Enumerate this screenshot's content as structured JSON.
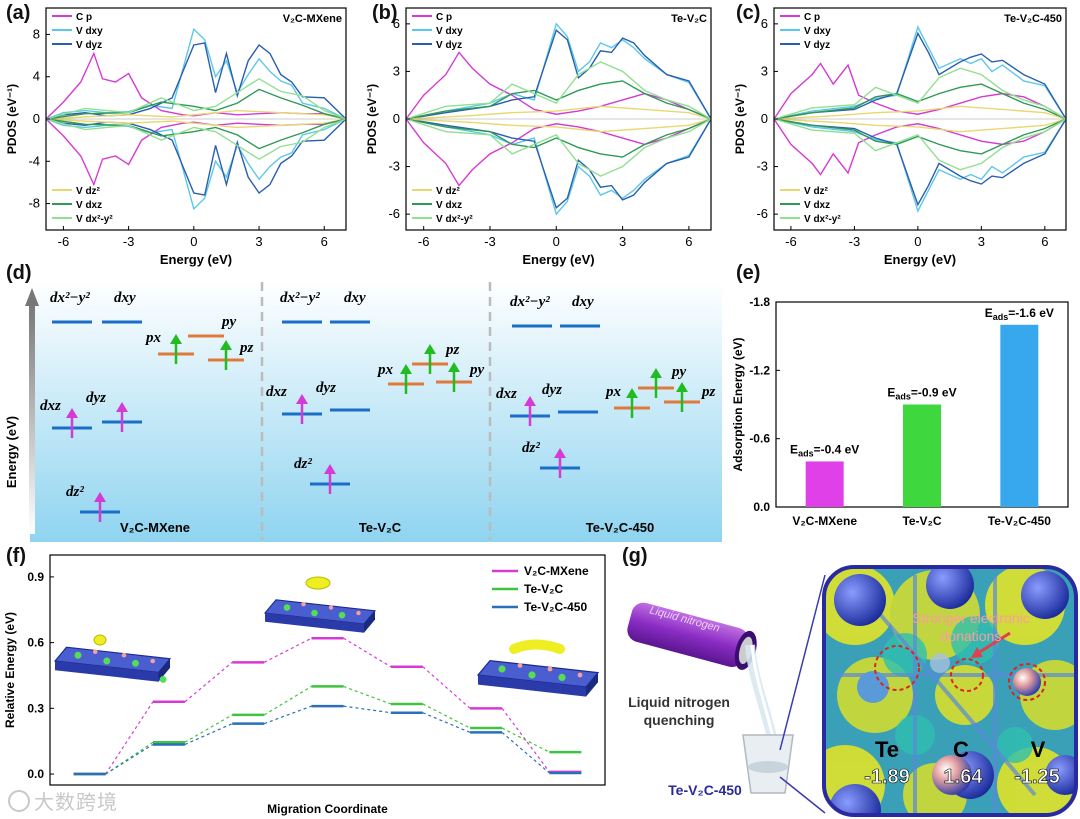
{
  "figure": {
    "panel_labels": [
      "(a)",
      "(b)",
      "(c)",
      "(d)",
      "(e)",
      "(f)",
      "(g)"
    ],
    "watermark": "大数跨境"
  },
  "chart_data": [
    {
      "id": "a",
      "type": "line",
      "panel_title": "V₂C-MXene",
      "xlabel": "Energy (eV)",
      "ylabel": "PDOS (eV⁻¹)",
      "xlim": [
        -6.8,
        7
      ],
      "ylim": [
        -10.5,
        10.5
      ],
      "xticks": [
        -6,
        -3,
        0,
        3,
        6
      ],
      "yticks": [
        -8,
        -4,
        0,
        4,
        8
      ],
      "legend_top": [
        "C p",
        "V dxy",
        "V dyz"
      ],
      "legend_bottom": [
        "V dz²",
        "V dxz",
        "V dx²-y²"
      ],
      "series": [
        {
          "name": "C p",
          "color": "#d63ad6",
          "x": [
            -6.8,
            -6,
            -5.2,
            -4.6,
            -4.2,
            -3.6,
            -3,
            -2.4,
            -1.5,
            -0.5,
            0,
            1,
            2,
            3,
            4,
            5,
            6,
            7
          ],
          "y": [
            0,
            1.6,
            3.5,
            6.2,
            3.8,
            3.5,
            4.3,
            2,
            0.8,
            0.4,
            0.3,
            0.6,
            0.4,
            0.5,
            0.6,
            0.5,
            0.5,
            0
          ]
        },
        {
          "name": "V dxy",
          "color": "#5cc8e8",
          "x": [
            -6.8,
            -6,
            -5,
            -4,
            -3,
            -2,
            -1,
            0,
            0.5,
            1,
            1.5,
            2,
            2.5,
            3,
            3.5,
            4,
            4.5,
            5,
            6,
            7
          ],
          "y": [
            0,
            0.6,
            0.8,
            0.6,
            0.7,
            1.3,
            1,
            8.5,
            7.5,
            4,
            5.5,
            2.5,
            4.2,
            5.7,
            4.5,
            3.6,
            3.2,
            1.5,
            1,
            0
          ]
        },
        {
          "name": "V dyz",
          "color": "#2a5fb0",
          "x": [
            -6.8,
            -6,
            -5,
            -4,
            -3,
            -2,
            -1,
            0,
            0.5,
            1,
            1.5,
            2,
            2.5,
            3,
            3.5,
            4,
            4.5,
            5,
            6,
            7
          ],
          "y": [
            0,
            0.4,
            0.6,
            0.3,
            0.4,
            1,
            2,
            7,
            7.2,
            2.5,
            6.2,
            2.2,
            5.5,
            7,
            6.2,
            4.2,
            3.5,
            2.1,
            2,
            0
          ]
        },
        {
          "name": "V dz²",
          "color": "#e8d870",
          "x": [
            -6.8,
            -5,
            -3,
            -1,
            0,
            2,
            4,
            6,
            7
          ],
          "y": [
            0,
            0.2,
            0.4,
            0.2,
            0.4,
            0.8,
            0.6,
            0.4,
            0
          ]
        },
        {
          "name": "V dxz",
          "color": "#2e9a55",
          "x": [
            -6.8,
            -5,
            -3,
            -1.5,
            0,
            1,
            2,
            3,
            4,
            5,
            6,
            7
          ],
          "y": [
            0,
            0.5,
            0.6,
            1.6,
            1.2,
            0.8,
            1.5,
            2.8,
            2,
            1.3,
            0.5,
            0
          ]
        },
        {
          "name": "V dx²-y²",
          "color": "#90e090",
          "x": [
            -6.8,
            -5,
            -3,
            -1.5,
            0,
            1,
            2,
            3,
            4,
            5,
            6,
            7
          ],
          "y": [
            0,
            1,
            0.6,
            2,
            0.8,
            1.2,
            2.5,
            3.8,
            2.6,
            2.2,
            0.8,
            0
          ]
        }
      ],
      "mirrored": true
    },
    {
      "id": "b",
      "type": "line",
      "panel_title": "Te-V₂C",
      "xlabel": "Energy (eV)",
      "ylabel": "PDOS (eV⁻¹)",
      "xlim": [
        -6.8,
        7
      ],
      "ylim": [
        -7,
        7
      ],
      "xticks": [
        -6,
        -3,
        0,
        3,
        6
      ],
      "yticks": [
        -6,
        -3,
        0,
        3,
        6
      ],
      "legend_top": [
        "C p",
        "V dxy",
        "V dyz"
      ],
      "legend_bottom": [
        "V dz²",
        "V dxz",
        "V dx²-y²"
      ],
      "series": [
        {
          "name": "C p",
          "color": "#d63ad6",
          "x": [
            -6.8,
            -6,
            -5,
            -4.4,
            -3.8,
            -3,
            -2,
            -1,
            0,
            1,
            2,
            3,
            4,
            5,
            6,
            7
          ],
          "y": [
            0,
            1.5,
            2.8,
            4.2,
            3.2,
            2.2,
            1.5,
            0.6,
            0.3,
            0.5,
            0.8,
            1.2,
            1.6,
            1.2,
            0.6,
            0
          ]
        },
        {
          "name": "V dxy",
          "color": "#5cc8e8",
          "x": [
            -6.8,
            -5,
            -3,
            -2,
            -1,
            0,
            0.5,
            1,
            1.5,
            2,
            2.5,
            3,
            3.5,
            4,
            5,
            6,
            7
          ],
          "y": [
            0,
            0.5,
            1,
            1.6,
            1.2,
            6,
            5.2,
            3,
            3.6,
            4.8,
            4.5,
            5,
            4.5,
            3.8,
            2.8,
            2.3,
            0
          ]
        },
        {
          "name": "V dyz",
          "color": "#2a5fb0",
          "x": [
            -6.8,
            -5,
            -3,
            -2,
            -1,
            0,
            0.5,
            1,
            1.5,
            2,
            2.5,
            3,
            3.5,
            4,
            5,
            6,
            7
          ],
          "y": [
            0,
            0.4,
            0.8,
            1.2,
            1.4,
            5.6,
            5,
            2.6,
            3.2,
            4.3,
            4.2,
            5.1,
            4.8,
            4,
            2.8,
            2.4,
            0
          ]
        },
        {
          "name": "V dz²",
          "color": "#e8d870",
          "x": [
            -6.8,
            -4,
            -2,
            0,
            2,
            4,
            6,
            7
          ],
          "y": [
            0,
            0.2,
            0.4,
            0.5,
            0.8,
            0.6,
            0.4,
            0
          ]
        },
        {
          "name": "V dxz",
          "color": "#2e9a55",
          "x": [
            -6.8,
            -5,
            -3,
            -2,
            -1,
            0,
            1,
            2,
            3,
            4,
            5,
            6,
            7
          ],
          "y": [
            0,
            0.5,
            0.8,
            1.6,
            1.8,
            1.2,
            1.8,
            2.2,
            2.4,
            1.6,
            1,
            0.6,
            0
          ]
        },
        {
          "name": "V dx²-y²",
          "color": "#90e090",
          "x": [
            -6.8,
            -5,
            -3,
            -2,
            -1,
            0,
            1,
            2,
            3,
            4,
            5,
            6,
            7
          ],
          "y": [
            0,
            0.8,
            1,
            2.2,
            1.6,
            1,
            2.8,
            3.6,
            3,
            1.8,
            1.2,
            0.8,
            0
          ]
        }
      ],
      "mirrored": true
    },
    {
      "id": "c",
      "type": "line",
      "panel_title": "Te-V₂C-450",
      "xlabel": "Energy (eV)",
      "ylabel": "PDOS (eV⁻¹)",
      "xlim": [
        -6.8,
        7
      ],
      "ylim": [
        -7,
        7
      ],
      "xticks": [
        -6,
        -3,
        0,
        3,
        6
      ],
      "yticks": [
        -6,
        -3,
        0,
        3,
        6
      ],
      "legend_top": [
        "C p",
        "V dxy",
        "V dyz"
      ],
      "legend_bottom": [
        "V dz²",
        "V dxz",
        "V dx²-y²"
      ],
      "series": [
        {
          "name": "C p",
          "color": "#d63ad6",
          "x": [
            -6.8,
            -6,
            -5,
            -4.6,
            -4,
            -3.3,
            -2.8,
            -2,
            -1,
            0,
            1,
            2,
            3,
            4,
            5,
            6,
            7
          ],
          "y": [
            0,
            1.6,
            2.8,
            3.5,
            2.2,
            3.4,
            1.5,
            1,
            0.5,
            0.3,
            0.6,
            1,
            1.4,
            1.6,
            1.4,
            0.8,
            0
          ]
        },
        {
          "name": "V dxy",
          "color": "#5cc8e8",
          "x": [
            -6.8,
            -5,
            -3,
            -2,
            -1,
            0,
            0.5,
            1,
            2,
            2.5,
            3,
            3.5,
            4,
            5,
            6,
            7
          ],
          "y": [
            0,
            0.5,
            0.8,
            1.3,
            1.5,
            5.8,
            4.5,
            3.2,
            3.8,
            3.5,
            3.8,
            3,
            3.4,
            2.4,
            2.1,
            0
          ]
        },
        {
          "name": "V dyz",
          "color": "#2a5fb0",
          "x": [
            -6.8,
            -5,
            -3,
            -2,
            -1,
            0,
            0.5,
            1,
            2,
            2.5,
            3,
            3.5,
            4,
            5,
            6,
            7
          ],
          "y": [
            0,
            0.4,
            0.6,
            1.2,
            1.6,
            5.4,
            4.2,
            2.8,
            3.6,
            3.9,
            4.1,
            3.6,
            3.7,
            2.8,
            2.2,
            0
          ]
        },
        {
          "name": "V dz²",
          "color": "#e8d870",
          "x": [
            -6.8,
            -4,
            -2,
            0,
            2,
            4,
            6,
            7
          ],
          "y": [
            0,
            0.2,
            0.4,
            0.5,
            0.8,
            0.6,
            0.4,
            0
          ]
        },
        {
          "name": "V dxz",
          "color": "#2e9a55",
          "x": [
            -6.8,
            -5,
            -3,
            -2,
            -1,
            0,
            1,
            2,
            3,
            4,
            5,
            6,
            7
          ],
          "y": [
            0,
            0.4,
            0.7,
            1.4,
            1.6,
            1.1,
            1.6,
            2,
            2.2,
            1.6,
            1,
            0.6,
            0
          ]
        },
        {
          "name": "V dx²-y²",
          "color": "#90e090",
          "x": [
            -6.8,
            -5,
            -3,
            -2,
            -1,
            0,
            1,
            2,
            3,
            4,
            5,
            6,
            7
          ],
          "y": [
            0,
            0.7,
            0.9,
            2,
            1.5,
            1,
            2.6,
            3.2,
            2.8,
            1.8,
            1.2,
            0.8,
            0
          ]
        }
      ],
      "mirrored": true
    },
    {
      "id": "e",
      "type": "bar",
      "ylabel": "Adsorption Energy (eV)",
      "categories": [
        "V₂C-MXene",
        "Te-V₂C",
        "Te-V₂C-450"
      ],
      "values": [
        -0.4,
        -0.9,
        -1.6
      ],
      "colors": [
        "#e040e8",
        "#3ed83e",
        "#38a8ee"
      ],
      "annotation_prefix": "E",
      "annotation_subscript": "ads",
      "annotations": [
        "=-0.4 eV",
        "=-0.9 eV",
        "=-1.6 eV"
      ],
      "ylim": [
        0,
        -1.8
      ],
      "yticks": [
        "0.0",
        "-0.6",
        "-1.2",
        "-1.8"
      ],
      "ytick_values": [
        0,
        -0.6,
        -1.2,
        -1.8
      ]
    },
    {
      "id": "f",
      "type": "line",
      "xlabel": "Migration Coordinate",
      "ylabel": "Relative Energy (eV)",
      "ylim": [
        -0.05,
        1.0
      ],
      "yticks": [
        "0.0",
        "0.3",
        "0.6",
        "0.9"
      ],
      "ytick_values": [
        0,
        0.3,
        0.6,
        0.9
      ],
      "series": [
        {
          "name": "V₂C-MXene",
          "color": "#d63ad6",
          "values": [
            0.0,
            0.33,
            0.51,
            0.62,
            0.49,
            0.3,
            0.01
          ]
        },
        {
          "name": "Te-V₂C",
          "color": "#3ec43e",
          "values": [
            0.0,
            0.145,
            0.27,
            0.4,
            0.32,
            0.21,
            0.1
          ]
        },
        {
          "name": "Te-V₂C-450",
          "color": "#2a6fb8",
          "values": [
            0.0,
            0.135,
            0.23,
            0.31,
            0.28,
            0.19,
            0.005
          ]
        }
      ]
    }
  ],
  "panel_d": {
    "y_axis_label": "Energy (eV)",
    "columns": [
      {
        "name": "V₂C-MXene",
        "orbitals": [
          "dx²−y²",
          "dxy",
          "dxz",
          "dyz",
          "dz²",
          "px",
          "py",
          "pz"
        ]
      },
      {
        "name": "Te-V₂C",
        "orbitals": [
          "dx²−y²",
          "dxy",
          "dxz",
          "dyz",
          "dz²",
          "px",
          "pz",
          "py"
        ]
      },
      {
        "name": "Te-V₂C-450",
        "orbitals": [
          "dx²−y²",
          "dxy",
          "dxz",
          "dyz",
          "dz²",
          "px",
          "py",
          "pz"
        ]
      }
    ]
  },
  "panel_g": {
    "cylinder_label": "Liquid nitrogen",
    "process_line1": "Liquid nitrogen",
    "process_line2": "quenching",
    "product_label": "Te-V₂C-450",
    "donation_line1": "Stronger electronic",
    "donation_line2": "donations",
    "atoms": [
      {
        "element": "Te",
        "charge": "-1.89"
      },
      {
        "element": "C",
        "charge": "1.64"
      },
      {
        "element": "V",
        "charge": "-1.25"
      }
    ]
  }
}
